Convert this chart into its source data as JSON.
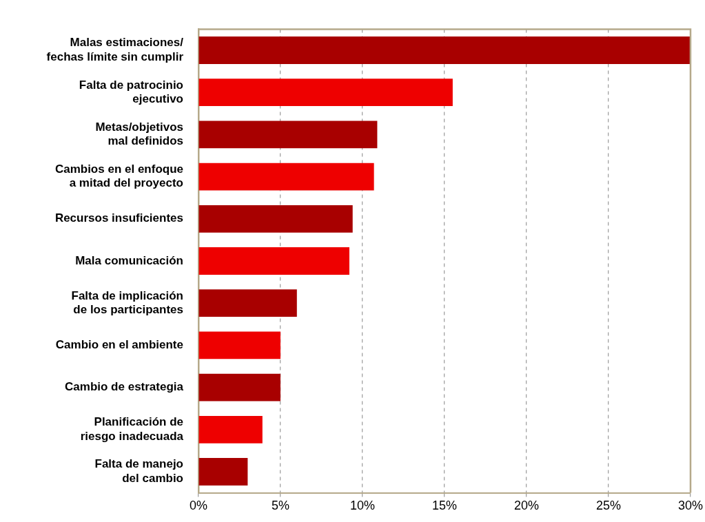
{
  "chart_data": {
    "type": "bar",
    "orientation": "horizontal",
    "categories": [
      "Malas estimaciones/\nfechas límite sin cumplir",
      "Falta de patrocinio\nejecutivo",
      "Metas/objetivos\nmal definidos",
      "Cambios en el enfoque\na mitad del proyecto",
      "Recursos insuficientes",
      "Mala comunicación",
      "Falta de implicación\nde los participantes",
      "Cambio en el ambiente",
      "Cambio de estrategia",
      "Planificación de\nriesgo inadecuada",
      "Falta de manejo\ndel cambio"
    ],
    "values": [
      30,
      15.5,
      10.9,
      10.7,
      9.4,
      9.2,
      6,
      5,
      5,
      3.9,
      3
    ],
    "colors": [
      "#a80000",
      "#ee0000",
      "#a80000",
      "#ee0000",
      "#a80000",
      "#ee0000",
      "#a80000",
      "#ee0000",
      "#a80000",
      "#ee0000",
      "#a80000"
    ],
    "xlim": [
      0,
      30
    ],
    "xticks": [
      {
        "value": 0,
        "label": "0%"
      },
      {
        "value": 5,
        "label": "5%"
      },
      {
        "value": 10,
        "label": "10%"
      },
      {
        "value": 15,
        "label": "15%"
      },
      {
        "value": 20,
        "label": "20%"
      },
      {
        "value": 25,
        "label": "25%"
      },
      {
        "value": 30,
        "label": "30%"
      }
    ],
    "grid": "x",
    "legend": false
  }
}
